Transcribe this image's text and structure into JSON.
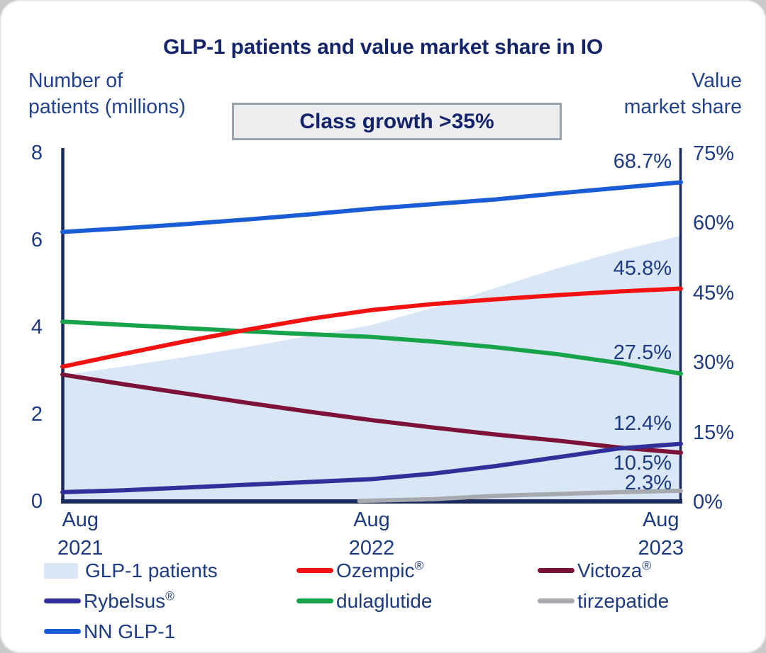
{
  "title": "GLP-1 patients and value market share in IO",
  "growth_box": {
    "label": "Class growth >35%",
    "fill": "#ededf0",
    "border": "#9aa2ac"
  },
  "left_axis": {
    "label_line1": "Number of",
    "label_line2": "patients (millions)",
    "ticks": [
      {
        "label": "8",
        "value": 8
      },
      {
        "label": "6",
        "value": 6
      },
      {
        "label": "4",
        "value": 4
      },
      {
        "label": "2",
        "value": 2
      },
      {
        "label": "0",
        "value": 0
      }
    ]
  },
  "right_axis": {
    "label_line1": "Value",
    "label_line2": "market share",
    "ticks": [
      {
        "label": "75%",
        "value": 75
      },
      {
        "label": "60%",
        "value": 60
      },
      {
        "label": "45%",
        "value": 45
      },
      {
        "label": "30%",
        "value": 30
      },
      {
        "label": "15%",
        "value": 15
      },
      {
        "label": "0%",
        "value": 0
      }
    ]
  },
  "x_axis": {
    "ticks": [
      {
        "line1": "Aug",
        "line2": "2021",
        "f": 0
      },
      {
        "line1": "Aug",
        "line2": "2022",
        "f": 0.5
      },
      {
        "line1": "Aug",
        "line2": "2023",
        "f": 1
      }
    ]
  },
  "chart_data": {
    "type": "line",
    "x_description": "time from Aug 2021 (0) to Aug 2023 (1), ticks each August",
    "ylim_left_millions": [
      0,
      8
    ],
    "ylim_right_percent": [
      0,
      75
    ],
    "grid": false,
    "area_series": {
      "name": "GLP-1 patients",
      "axis": "left",
      "unit": "millions",
      "color": "#d9e6f6",
      "x": [
        0,
        0.1,
        0.2,
        0.3,
        0.4,
        0.5,
        0.6,
        0.7,
        0.8,
        0.9,
        1
      ],
      "values": [
        2.9,
        3.1,
        3.32,
        3.55,
        3.8,
        4.05,
        4.45,
        4.9,
        5.35,
        5.75,
        6.1
      ]
    },
    "series": [
      {
        "name": "Victoza",
        "axis": "right",
        "unit": "%",
        "color": "#7c1237",
        "x": [
          0,
          0.1,
          0.2,
          0.3,
          0.4,
          0.5,
          0.6,
          0.7,
          0.8,
          0.9,
          1
        ],
        "values": [
          27.3,
          25.2,
          23.2,
          21.2,
          19.3,
          17.5,
          15.9,
          14.4,
          13.1,
          11.6,
          10.5
        ],
        "end_label": "10.5%"
      },
      {
        "name": "dulaglutide",
        "axis": "right",
        "unit": "%",
        "color": "#16a34a",
        "x": [
          0,
          0.1,
          0.2,
          0.3,
          0.4,
          0.5,
          0.6,
          0.7,
          0.8,
          0.9,
          1
        ],
        "values": [
          38.7,
          38,
          37.3,
          36.6,
          36,
          35.4,
          34.4,
          33.2,
          31.7,
          29.8,
          27.5
        ],
        "end_label": "27.5%"
      },
      {
        "name": "Ozempic",
        "axis": "right",
        "unit": "%",
        "color": "#f31111",
        "x": [
          0,
          0.1,
          0.2,
          0.3,
          0.4,
          0.5,
          0.6,
          0.7,
          0.8,
          0.9,
          1
        ],
        "values": [
          29,
          31.8,
          34.5,
          37,
          39.3,
          41.2,
          42.5,
          43.5,
          44.4,
          45.2,
          45.8
        ],
        "end_label": "45.8%"
      },
      {
        "name": "Rybelsus",
        "axis": "right",
        "unit": "%",
        "color": "#31309b",
        "x": [
          0,
          0.1,
          0.2,
          0.3,
          0.4,
          0.5,
          0.6,
          0.7,
          0.8,
          0.9,
          1
        ],
        "values": [
          2,
          2.4,
          3,
          3.6,
          4.2,
          4.8,
          6,
          7.6,
          9.5,
          11.4,
          12.4
        ],
        "end_label": "12.4%"
      },
      {
        "name": "tirzepatide",
        "axis": "right",
        "unit": "%",
        "color": "#a6a9ad",
        "x": [
          0.48,
          0.6,
          0.7,
          0.8,
          0.9,
          1
        ],
        "values": [
          0.1,
          0.5,
          1.2,
          1.6,
          2.0,
          2.3
        ],
        "end_label": "2.3%"
      },
      {
        "name": "NN GLP-1",
        "axis": "right",
        "unit": "%",
        "color": "#1a5cd6",
        "x": [
          0,
          0.1,
          0.2,
          0.3,
          0.4,
          0.5,
          0.6,
          0.7,
          0.8,
          0.9,
          1
        ],
        "values": [
          58,
          58.8,
          59.7,
          60.7,
          61.8,
          63,
          64,
          65,
          66.3,
          67.5,
          68.7
        ],
        "end_label": "68.7%"
      }
    ]
  },
  "legend": [
    {
      "label": "GLP-1 patients",
      "reg": false,
      "swatch": "area",
      "color": "#d9e6f6"
    },
    {
      "label": "Ozempic",
      "reg": true,
      "swatch": "line",
      "color": "#f31111"
    },
    {
      "label": "Victoza",
      "reg": true,
      "swatch": "line",
      "color": "#7c1237"
    },
    {
      "label": "Rybelsus",
      "reg": true,
      "swatch": "line",
      "color": "#31309b"
    },
    {
      "label": "dulaglutide",
      "reg": false,
      "swatch": "line",
      "color": "#16a34a"
    },
    {
      "label": "tirzepatide",
      "reg": false,
      "swatch": "line",
      "color": "#a6a9ad"
    },
    {
      "label": "NN GLP-1",
      "reg": false,
      "swatch": "line",
      "color": "#1a5cd6"
    }
  ],
  "colors": {
    "axis": "#1b2a5e",
    "text": "#1e3a80",
    "title": "#14256b"
  }
}
